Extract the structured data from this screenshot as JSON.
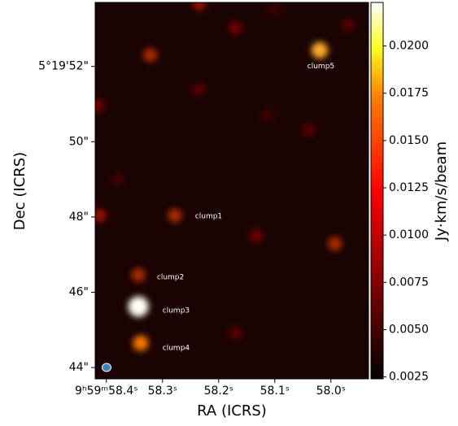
{
  "chart_data": {
    "type": "image",
    "xlabel": "RA (ICRS)",
    "ylabel": "Dec (ICRS)",
    "colorbar_label": "Jy·km/s/beam",
    "xlim": [
      58.42,
      57.933
    ],
    "ylim": [
      43.7,
      53.7
    ],
    "xticks": [
      {
        "value": 58.4,
        "label": "9ʰ59ᵐ58.4ˢ"
      },
      {
        "value": 58.3,
        "label": "58.3ˢ"
      },
      {
        "value": 58.2,
        "label": "58.2ˢ"
      },
      {
        "value": 58.1,
        "label": "58.1ˢ"
      },
      {
        "value": 58.0,
        "label": "58.0ˢ"
      }
    ],
    "yticks": [
      {
        "value": 44,
        "label": "44\""
      },
      {
        "value": 46,
        "label": "46\""
      },
      {
        "value": 48,
        "label": "48\""
      },
      {
        "value": 50,
        "label": "50\""
      },
      {
        "value": 52,
        "label": "5°19'52\""
      }
    ],
    "clim": [
      0.0024,
      0.0223
    ],
    "cticks": [
      {
        "value": 0.0025,
        "label": "0.0025"
      },
      {
        "value": 0.005,
        "label": "0.0050"
      },
      {
        "value": 0.0075,
        "label": "0.0075"
      },
      {
        "value": 0.01,
        "label": "0.0100"
      },
      {
        "value": 0.0125,
        "label": "0.0125"
      },
      {
        "value": 0.015,
        "label": "0.0150"
      },
      {
        "value": 0.0175,
        "label": "0.0175"
      },
      {
        "value": 0.02,
        "label": "0.0200"
      }
    ],
    "sources": {
      "x": [
        58.343,
        58.339,
        58.343,
        58.278,
        58.02,
        58.322,
        58.17,
        58.412,
        57.993,
        58.133,
        58.235,
        58.039,
        58.113,
        58.17,
        58.235,
        58.416,
        58.1,
        57.97,
        58.38
      ],
      "y": [
        45.62,
        44.65,
        46.46,
        48.04,
        52.43,
        52.3,
        53.02,
        48.04,
        47.29,
        47.5,
        51.39,
        50.31,
        50.7,
        44.91,
        53.66,
        50.96,
        53.5,
        53.1,
        49.0
      ],
      "values": [
        0.022,
        0.012,
        0.009,
        0.009,
        0.014,
        0.009,
        0.007,
        0.008,
        0.009,
        0.007,
        0.006,
        0.006,
        0.005,
        0.006,
        0.008,
        0.007,
        0.005,
        0.006,
        0.005
      ]
    },
    "annotations": [
      {
        "text": "clump1",
        "x": 58.242,
        "y": 48.02
      },
      {
        "text": "clump2",
        "x": 58.31,
        "y": 46.4
      },
      {
        "text": "clump3",
        "x": 58.3,
        "y": 45.51
      },
      {
        "text": "clump4",
        "x": 58.3,
        "y": 44.52
      },
      {
        "text": "clump5",
        "x": 58.042,
        "y": 52.0
      }
    ]
  }
}
